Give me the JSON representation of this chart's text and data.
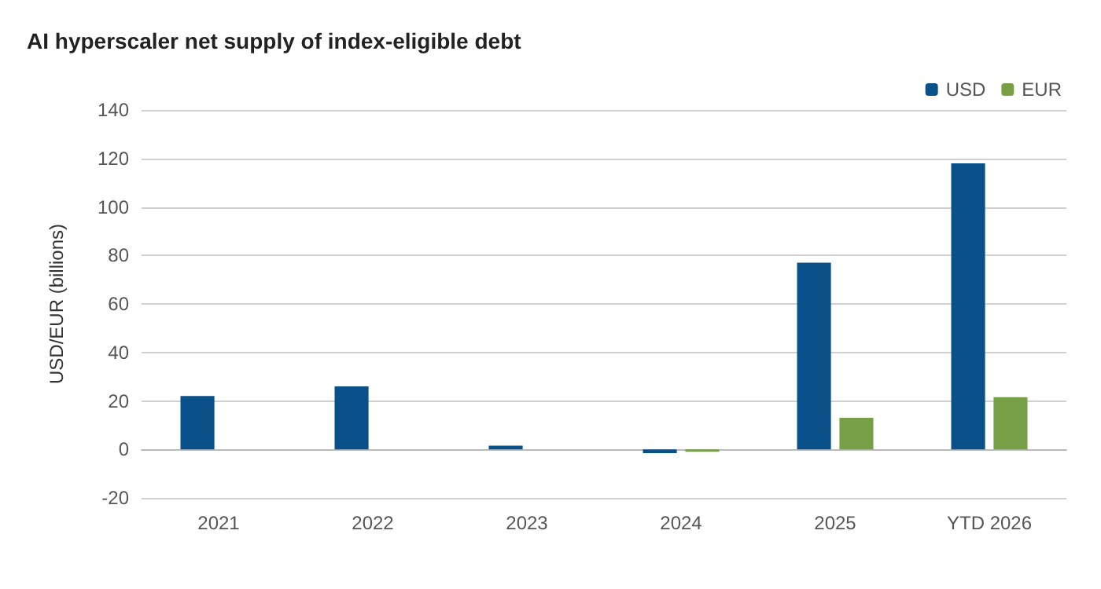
{
  "chart_data": {
    "type": "bar",
    "title": "AI hyperscaler net supply of index-eligible debt",
    "ylabel": "USD/EUR (billions)",
    "categories": [
      "2021",
      "2022",
      "2023",
      "2024",
      "2025",
      "YTD 2026"
    ],
    "series": [
      {
        "name": "USD",
        "color": "#0b5189",
        "values": [
          22,
          26,
          1.5,
          -1.5,
          77,
          118
        ]
      },
      {
        "name": "EUR",
        "color": "#77a046",
        "values": [
          0,
          0,
          0,
          -1,
          13,
          21.5
        ]
      }
    ],
    "ylim": [
      -20,
      140
    ],
    "yticks": [
      -20,
      0,
      20,
      40,
      60,
      80,
      100,
      120,
      140
    ],
    "grid": "y",
    "legend": "top right"
  }
}
